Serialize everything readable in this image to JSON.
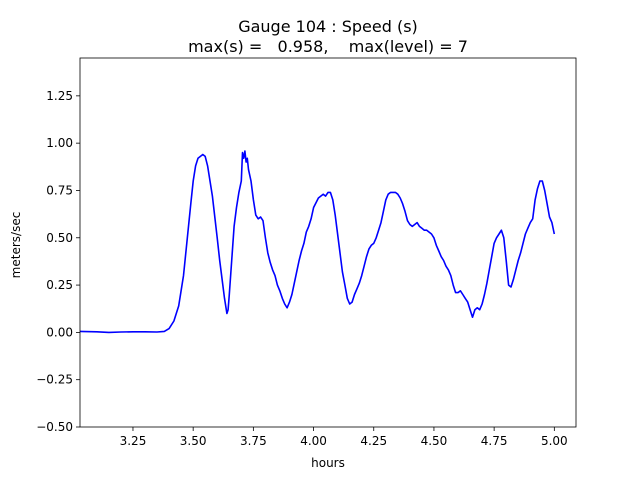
{
  "chart_data": {
    "type": "line",
    "title_line1": "Gauge 104 : Speed (s)",
    "title_line2": "max(s) =   0.958,    max(level) = 7",
    "xlabel": "hours",
    "ylabel": "meters/sec",
    "xlim": [
      3.03,
      5.09
    ],
    "ylim": [
      -0.5,
      1.45
    ],
    "xticks": [
      3.25,
      3.5,
      3.75,
      4.0,
      4.25,
      4.5,
      4.75,
      5.0
    ],
    "xtick_labels": [
      "3.25",
      "3.50",
      "3.75",
      "4.00",
      "4.25",
      "4.50",
      "4.75",
      "5.00"
    ],
    "yticks": [
      -0.5,
      -0.25,
      0.0,
      0.25,
      0.5,
      0.75,
      1.0,
      1.25
    ],
    "ytick_labels": [
      "−0.50",
      "−0.25",
      "0.00",
      "0.25",
      "0.50",
      "0.75",
      "1.00",
      "1.25"
    ],
    "grid": false,
    "series": [
      {
        "color": "#0000ff",
        "x": [
          3.03,
          3.1,
          3.15,
          3.2,
          3.25,
          3.3,
          3.35,
          3.38,
          3.4,
          3.42,
          3.44,
          3.46,
          3.48,
          3.49,
          3.5,
          3.51,
          3.52,
          3.54,
          3.55,
          3.56,
          3.58,
          3.6,
          3.61,
          3.62,
          3.63,
          3.64,
          3.645,
          3.65,
          3.66,
          3.67,
          3.68,
          3.69,
          3.7,
          3.705,
          3.71,
          3.715,
          3.72,
          3.725,
          3.73,
          3.74,
          3.75,
          3.76,
          3.77,
          3.78,
          3.79,
          3.8,
          3.81,
          3.82,
          3.83,
          3.84,
          3.85,
          3.86,
          3.87,
          3.88,
          3.89,
          3.9,
          3.91,
          3.92,
          3.93,
          3.94,
          3.95,
          3.96,
          3.97,
          3.98,
          3.99,
          4.0,
          4.02,
          4.04,
          4.05,
          4.06,
          4.07,
          4.08,
          4.09,
          4.1,
          4.11,
          4.12,
          4.13,
          4.14,
          4.15,
          4.16,
          4.17,
          4.18,
          4.19,
          4.2,
          4.21,
          4.22,
          4.23,
          4.24,
          4.25,
          4.26,
          4.27,
          4.28,
          4.29,
          4.3,
          4.31,
          4.32,
          4.33,
          4.34,
          4.35,
          4.36,
          4.37,
          4.38,
          4.39,
          4.4,
          4.41,
          4.42,
          4.43,
          4.44,
          4.45,
          4.46,
          4.47,
          4.48,
          4.49,
          4.5,
          4.51,
          4.52,
          4.53,
          4.54,
          4.55,
          4.56,
          4.57,
          4.58,
          4.59,
          4.6,
          4.61,
          4.62,
          4.63,
          4.64,
          4.65,
          4.66,
          4.67,
          4.68,
          4.69,
          4.7,
          4.71,
          4.72,
          4.73,
          4.74,
          4.75,
          4.76,
          4.77,
          4.78,
          4.79,
          4.8,
          4.81,
          4.82,
          4.83,
          4.84,
          4.85,
          4.86,
          4.87,
          4.88,
          4.89,
          4.9,
          4.91,
          4.92,
          4.93,
          4.94,
          4.95,
          4.96,
          4.97,
          4.98,
          4.99,
          5.0
        ],
        "y": [
          0.005,
          0.003,
          0.0,
          0.002,
          0.003,
          0.003,
          0.002,
          0.005,
          0.02,
          0.06,
          0.14,
          0.3,
          0.55,
          0.68,
          0.8,
          0.88,
          0.92,
          0.94,
          0.93,
          0.88,
          0.72,
          0.5,
          0.38,
          0.28,
          0.18,
          0.1,
          0.12,
          0.2,
          0.38,
          0.56,
          0.66,
          0.74,
          0.8,
          0.95,
          0.92,
          0.958,
          0.9,
          0.92,
          0.86,
          0.8,
          0.7,
          0.62,
          0.6,
          0.61,
          0.59,
          0.5,
          0.42,
          0.37,
          0.33,
          0.3,
          0.25,
          0.22,
          0.18,
          0.15,
          0.13,
          0.16,
          0.2,
          0.26,
          0.32,
          0.38,
          0.43,
          0.47,
          0.53,
          0.56,
          0.6,
          0.66,
          0.71,
          0.73,
          0.72,
          0.74,
          0.74,
          0.7,
          0.62,
          0.52,
          0.42,
          0.32,
          0.25,
          0.18,
          0.15,
          0.16,
          0.2,
          0.23,
          0.26,
          0.3,
          0.35,
          0.4,
          0.44,
          0.46,
          0.47,
          0.5,
          0.54,
          0.58,
          0.64,
          0.7,
          0.73,
          0.74,
          0.74,
          0.74,
          0.73,
          0.71,
          0.68,
          0.64,
          0.59,
          0.57,
          0.56,
          0.57,
          0.58,
          0.56,
          0.55,
          0.54,
          0.54,
          0.53,
          0.52,
          0.5,
          0.46,
          0.43,
          0.4,
          0.38,
          0.35,
          0.33,
          0.3,
          0.25,
          0.21,
          0.21,
          0.22,
          0.2,
          0.18,
          0.16,
          0.12,
          0.08,
          0.12,
          0.13,
          0.12,
          0.15,
          0.2,
          0.26,
          0.33,
          0.4,
          0.47,
          0.5,
          0.52,
          0.54,
          0.5,
          0.38,
          0.25,
          0.24,
          0.28,
          0.33,
          0.38,
          0.42,
          0.47,
          0.52,
          0.55,
          0.58,
          0.6,
          0.7,
          0.76,
          0.8,
          0.8,
          0.75,
          0.68,
          0.61,
          0.58,
          0.52
        ]
      }
    ]
  }
}
